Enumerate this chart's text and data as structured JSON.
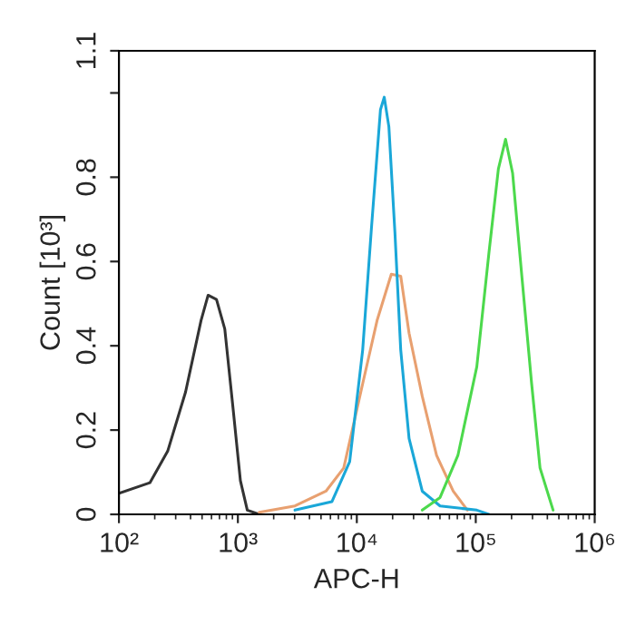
{
  "chart_data": {
    "type": "line",
    "xlabel": "APC-H",
    "ylabel": "Count [10³]",
    "log": "x",
    "grid": false,
    "legend": false,
    "marker": "none",
    "line_style": "solid",
    "xlim": [
      100,
      1000000
    ],
    "xticks": [
      {
        "value": 100,
        "label": "10²"
      },
      {
        "value": 1000,
        "label": "10³"
      },
      {
        "value": 10000,
        "label": "10⁴"
      },
      {
        "value": 100000,
        "label": "10⁵"
      },
      {
        "value": 1000000,
        "label": "10⁶"
      }
    ],
    "ylim": [
      0,
      1.1
    ],
    "yticks": [
      0,
      0.2,
      0.4,
      0.6,
      0.8,
      {
        "value": 1,
        "label": null
      },
      1.1
    ],
    "series": [
      {
        "color": "#333333",
        "x": [
          100,
          182,
          257,
          363,
          490,
          562,
          661,
          776,
          912,
          1050,
          1200,
          1510
        ],
        "values": [
          0.05,
          0.075,
          0.15,
          0.29,
          0.46,
          0.52,
          0.51,
          0.44,
          0.25,
          0.08,
          0.01,
          0
        ]
      },
      {
        "color": "#e8a070",
        "x": [
          1510,
          3020,
          5500,
          7760,
          11200,
          14800,
          19500,
          23400,
          27500,
          35500,
          46800,
          64600,
          85100
        ],
        "values": [
          0.005,
          0.02,
          0.055,
          0.11,
          0.31,
          0.46,
          0.57,
          0.565,
          0.43,
          0.28,
          0.14,
          0.055,
          0.01
        ]
      },
      {
        "color": "#1aa7d8",
        "x": [
          3020,
          6170,
          8710,
          11200,
          13200,
          15800,
          17000,
          18600,
          20900,
          23400,
          27500,
          35500,
          50100,
          102000,
          129000
        ],
        "values": [
          0.01,
          0.03,
          0.125,
          0.39,
          0.67,
          0.96,
          0.99,
          0.92,
          0.67,
          0.39,
          0.18,
          0.055,
          0.02,
          0.01,
          0
        ]
      },
      {
        "color": "#4cd94c",
        "x": [
          35500,
          50100,
          70800,
          102000,
          129000,
          155000,
          178000,
          204000,
          245000,
          295000,
          347000,
          447000
        ],
        "values": [
          0.01,
          0.04,
          0.14,
          0.35,
          0.62,
          0.82,
          0.89,
          0.81,
          0.56,
          0.31,
          0.11,
          0.01
        ]
      }
    ]
  }
}
